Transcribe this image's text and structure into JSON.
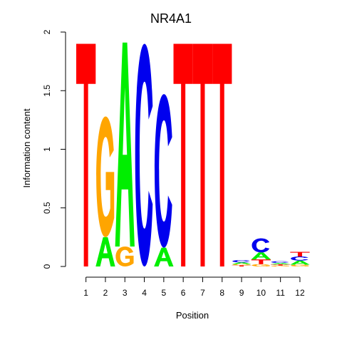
{
  "chart_data": {
    "type": "sequence-logo",
    "title": "NR4A1",
    "xlabel": "Position",
    "ylabel": "Information content",
    "ylim": [
      0,
      2
    ],
    "y_ticks": [
      "0",
      "0.5",
      "1",
      "1.5",
      "2"
    ],
    "x_ticks": [
      "1",
      "2",
      "3",
      "4",
      "5",
      "6",
      "7",
      "8",
      "9",
      "10",
      "11",
      "12"
    ],
    "colors": {
      "A": "#00ee00",
      "C": "#0000ee",
      "G": "#ffa500",
      "T": "#ff0000"
    },
    "positions": [
      {
        "pos": "1",
        "stack": [
          {
            "letter": "T",
            "height": 1.9
          }
        ]
      },
      {
        "pos": "2",
        "stack": [
          {
            "letter": "A",
            "height": 0.25
          },
          {
            "letter": "G",
            "height": 1.03
          }
        ]
      },
      {
        "pos": "3",
        "stack": [
          {
            "letter": "G",
            "height": 0.17
          },
          {
            "letter": "A",
            "height": 1.74
          }
        ]
      },
      {
        "pos": "4",
        "stack": [
          {
            "letter": "C",
            "height": 1.9
          }
        ]
      },
      {
        "pos": "5",
        "stack": [
          {
            "letter": "A",
            "height": 0.16
          },
          {
            "letter": "C",
            "height": 1.31
          }
        ]
      },
      {
        "pos": "6",
        "stack": [
          {
            "letter": "T",
            "height": 1.9
          }
        ]
      },
      {
        "pos": "7",
        "stack": [
          {
            "letter": "T",
            "height": 1.9
          }
        ]
      },
      {
        "pos": "8",
        "stack": [
          {
            "letter": "T",
            "height": 1.9
          }
        ]
      },
      {
        "pos": "9",
        "stack": [
          {
            "letter": "T",
            "height": 0.01
          },
          {
            "letter": "G",
            "height": 0.01
          },
          {
            "letter": "A",
            "height": 0.015
          },
          {
            "letter": "C",
            "height": 0.02
          }
        ]
      },
      {
        "pos": "10",
        "stack": [
          {
            "letter": "G",
            "height": 0.02
          },
          {
            "letter": "T",
            "height": 0.04
          },
          {
            "letter": "A",
            "height": 0.06
          },
          {
            "letter": "C",
            "height": 0.12
          }
        ]
      },
      {
        "pos": "11",
        "stack": [
          {
            "letter": "G",
            "height": 0.008
          },
          {
            "letter": "T",
            "height": 0.01
          },
          {
            "letter": "A",
            "height": 0.012
          },
          {
            "letter": "C",
            "height": 0.015
          }
        ]
      },
      {
        "pos": "12",
        "stack": [
          {
            "letter": "G",
            "height": 0.015
          },
          {
            "letter": "A",
            "height": 0.035
          },
          {
            "letter": "C",
            "height": 0.035
          },
          {
            "letter": "T",
            "height": 0.04
          }
        ]
      }
    ]
  }
}
